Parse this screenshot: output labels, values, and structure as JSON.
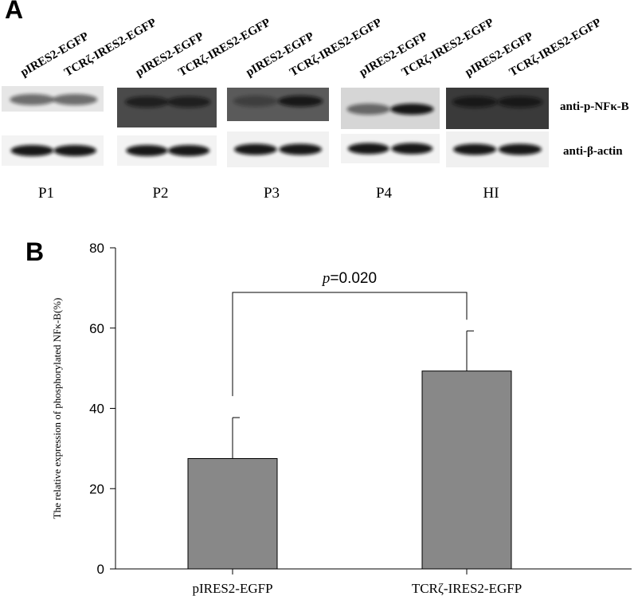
{
  "panel_a": {
    "letter": "A",
    "lane_labels": [
      "pIRES2-EGFP",
      "TCRζ-IRES2-EGFP"
    ],
    "antibodies": [
      "anti-p-NFκ-B",
      "anti-β-actin"
    ],
    "panels": [
      "P1",
      "P2",
      "P3",
      "P4",
      "HI"
    ]
  },
  "panel_b": {
    "letter": "B"
  },
  "chart_data": {
    "type": "bar",
    "categories": [
      "pIRES2-EGFP",
      "TCRζ-IRES2-EGFP"
    ],
    "values": [
      27.5,
      49.3
    ],
    "error": [
      10.2,
      10.0
    ],
    "ylabel": "The relative expression of phosphorylated NFκ-B(%)",
    "xlabel": "",
    "ylim": [
      0,
      80
    ],
    "yticks": [
      0,
      20,
      40,
      60,
      80
    ],
    "grid": false,
    "significance": {
      "prefix": "p",
      "text": "=0.020"
    },
    "bar_color": "#888888"
  }
}
